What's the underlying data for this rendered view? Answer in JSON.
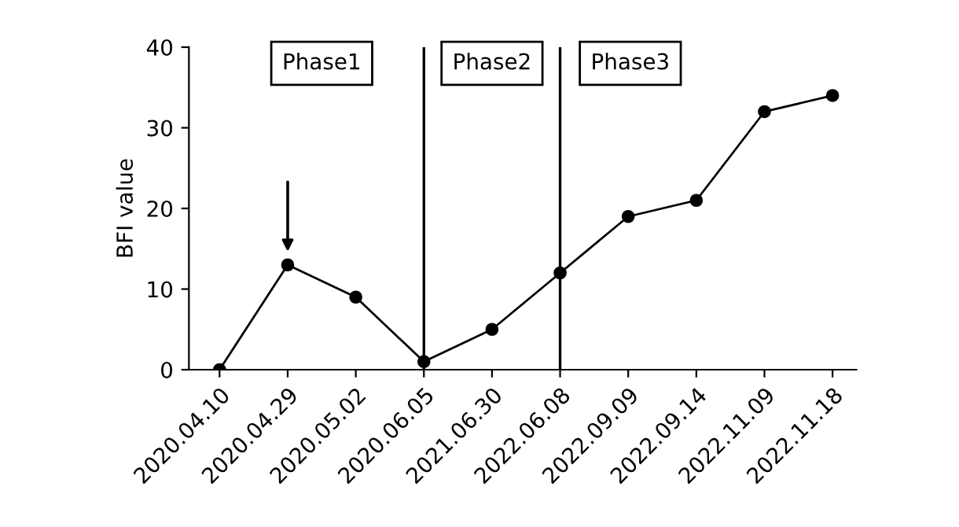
{
  "chart_data": {
    "type": "line",
    "ylabel": "BFI value",
    "categories": [
      "2020.04.10",
      "2020.04.29",
      "2020.05.02",
      "2020.06.05",
      "2021.06.30",
      "2022.06.08",
      "2022.09.09",
      "2022.09.14",
      "2022.11.09",
      "2022.11.18"
    ],
    "series": [
      {
        "color": "#000000",
        "values": [
          0,
          13,
          9,
          1,
          5,
          12,
          19,
          21,
          32,
          34
        ]
      }
    ],
    "ylim": [
      0,
      40
    ],
    "yticks": [
      0,
      10,
      20,
      30,
      40
    ],
    "ref_lines": [
      {
        "axis": "x",
        "value": "2020.06.05",
        "color": "#000000"
      },
      {
        "axis": "x",
        "value": "2022.06.08",
        "color": "#000000"
      }
    ],
    "annotations": [
      "Phase1",
      "Phase2",
      "Phase3"
    ],
    "marker": "circle",
    "line_style": "solid",
    "grid": false,
    "legend": false
  }
}
